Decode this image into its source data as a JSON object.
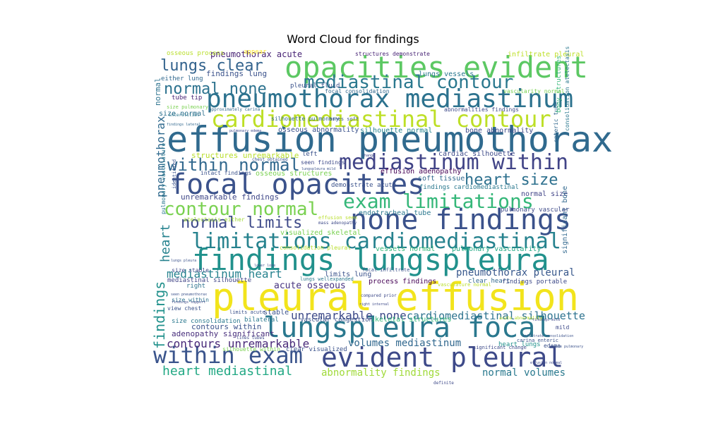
{
  "chart_data": {
    "type": "wordcloud",
    "title": "Word Cloud for findings",
    "words": [
      {
        "text": "pleural effusion",
        "weight": 1.0,
        "color": "#f2e41c"
      },
      {
        "text": "effusion pneumothorax",
        "weight": 0.95,
        "color": "#306a8e"
      },
      {
        "text": "opacities evident",
        "weight": 0.84,
        "color": "#5cc863"
      },
      {
        "text": "findings lungspleura",
        "weight": 0.84,
        "color": "#21918c"
      },
      {
        "text": "lungspleura focal",
        "weight": 0.8,
        "color": "#2a788e"
      },
      {
        "text": "none findings",
        "weight": 0.8,
        "color": "#3b528b"
      },
      {
        "text": "focal opacities",
        "weight": 0.8,
        "color": "#3b528b"
      },
      {
        "text": "evident pleural",
        "weight": 0.78,
        "color": "#3e4a89"
      },
      {
        "text": "pneumothorax mediastinum",
        "weight": 0.75,
        "color": "#2c728e"
      },
      {
        "text": "cardiomediastinal contour",
        "weight": 0.7,
        "color": "#bddf26"
      },
      {
        "text": "limitations cardiomediastinal",
        "weight": 0.68,
        "color": "#26828e"
      },
      {
        "text": "within exam",
        "weight": 0.68,
        "color": "#3a548c"
      },
      {
        "text": "mediastinum within",
        "weight": 0.64,
        "color": "#414487"
      },
      {
        "text": "exam limitations",
        "weight": 0.6,
        "color": "#35b779"
      },
      {
        "text": "contour normal",
        "weight": 0.56,
        "color": "#7ad151"
      },
      {
        "text": "mediastinal contour",
        "weight": 0.56,
        "color": "#2a788e"
      },
      {
        "text": "within normal",
        "weight": 0.5,
        "color": "#31688e"
      },
      {
        "text": "normal none",
        "weight": 0.48,
        "color": "#2c728e"
      },
      {
        "text": "lungs clear",
        "weight": 0.48,
        "color": "#33638d"
      },
      {
        "text": "normal limits",
        "weight": 0.48,
        "color": "#3e4a89"
      },
      {
        "text": "heart size",
        "weight": 0.48,
        "color": "#2d708e"
      },
      {
        "text": "heart mediastinal",
        "weight": 0.38,
        "color": "#22a884"
      },
      {
        "text": "contours unremarkable",
        "weight": 0.36,
        "color": "#482878"
      },
      {
        "text": "findings",
        "weight": 0.42,
        "color": "#21918c"
      },
      {
        "text": "pneumothorax",
        "weight": 0.34,
        "color": "#306a8e"
      },
      {
        "text": "heart",
        "weight": 0.36,
        "color": "#26828e"
      },
      {
        "text": "mediastinum heart",
        "weight": 0.34,
        "color": "#26828e"
      },
      {
        "text": "unremarkable none",
        "weight": 0.33,
        "color": "#3e4a89"
      },
      {
        "text": "cardiomediastinal silhouette",
        "weight": 0.32,
        "color": "#2c728e"
      },
      {
        "text": "pneumothorax pleural",
        "weight": 0.3,
        "color": "#38588c"
      },
      {
        "text": "abnormality findings",
        "weight": 0.27,
        "color": "#a0da39"
      },
      {
        "text": "normal volumes",
        "weight": 0.27,
        "color": "#29798e"
      },
      {
        "text": "volumes mediastinum",
        "weight": 0.27,
        "color": "#31688e"
      },
      {
        "text": "acute osseous",
        "weight": 0.24,
        "color": "#46327e"
      },
      {
        "text": "pneumothorax acute",
        "weight": 0.22,
        "color": "#482475"
      },
      {
        "text": "findings lung",
        "weight": 0.2,
        "color": "#3b528b"
      },
      {
        "text": "structures unremarkable",
        "weight": 0.2,
        "color": "#b8de29"
      },
      {
        "text": "unremarkable findings",
        "weight": 0.2,
        "color": "#3f4788"
      },
      {
        "text": "adenopathy significant",
        "weight": 0.2,
        "color": "#472d7b"
      },
      {
        "text": "contours within",
        "weight": 0.2,
        "color": "#3b528b"
      },
      {
        "text": "mediastinal silhouette",
        "weight": 0.12,
        "color": "#414487"
      },
      {
        "text": "visualized skeletal",
        "weight": 0.16,
        "color": "#7ad151"
      },
      {
        "text": "vessels normal",
        "weight": 0.16,
        "color": "#35b779"
      },
      {
        "text": "pulmonary vascularity",
        "weight": 0.16,
        "color": "#22a884"
      },
      {
        "text": "findings cardiomediastinal",
        "weight": 0.14,
        "color": "#2a788e"
      },
      {
        "text": "normal size",
        "weight": 0.15,
        "color": "#414487"
      },
      {
        "text": "soft tissue",
        "weight": 0.14,
        "color": "#31688e"
      },
      {
        "text": "effusion adenopathy",
        "weight": 0.14,
        "color": "#440154"
      },
      {
        "text": "cardiac silhouette",
        "weight": 0.14,
        "color": "#3e4a89"
      },
      {
        "text": "bone abnormality",
        "weight": 0.14,
        "color": "#3e4a89"
      },
      {
        "text": "osseous abnormality",
        "weight": 0.14,
        "color": "#3b528b"
      },
      {
        "text": "silhouette normal",
        "weight": 0.14,
        "color": "#26828e"
      },
      {
        "text": "endotracheal tube",
        "weight": 0.15,
        "color": "#2a788e"
      },
      {
        "text": "demonstrate acute",
        "weight": 0.12,
        "color": "#3b528b"
      },
      {
        "text": "lungs vessels",
        "weight": 0.15,
        "color": "#2a788e"
      },
      {
        "text": "infiltrate pleural",
        "weight": 0.15,
        "color": "#bddf26"
      },
      {
        "text": "osseous process",
        "weight": 0.14,
        "color": "#b8de29"
      },
      {
        "text": "pleural fluid",
        "weight": 0.14,
        "color": "#3b528b"
      },
      {
        "text": "focal consolidation",
        "weight": 0.12,
        "color": "#31688e"
      },
      {
        "text": "tube tip",
        "weight": 0.12,
        "color": "#482475"
      },
      {
        "text": "size normal",
        "weight": 0.13,
        "color": "#2d708e"
      },
      {
        "text": "normal",
        "weight": 0.2,
        "color": "#2c728e"
      },
      {
        "text": "right",
        "weight": 0.18,
        "color": "#2c728e"
      },
      {
        "text": "left",
        "weight": 0.12,
        "color": "#3b528b"
      },
      {
        "text": "appear",
        "weight": 0.12,
        "color": "#fde725"
      },
      {
        "text": "stable",
        "weight": 0.14,
        "color": "#3b528b"
      },
      {
        "text": "bilateral",
        "weight": 0.12,
        "color": "#2a788e"
      },
      {
        "text": "size within",
        "weight": 0.12,
        "color": "#2c728e"
      },
      {
        "text": "size consolidation",
        "weight": 0.12,
        "color": "#2a788e"
      },
      {
        "text": "view chest",
        "weight": 0.1,
        "color": "#3b528b"
      },
      {
        "text": "limits lung",
        "weight": 0.12,
        "color": "#3b528b"
      },
      {
        "text": "lungs wellexpanded",
        "weight": 0.1,
        "color": "#2a788e"
      },
      {
        "text": "process findings",
        "weight": 0.12,
        "color": "#440154"
      },
      {
        "text": "clear heart",
        "weight": 0.12,
        "color": "#31688e"
      },
      {
        "text": "findings portable",
        "weight": 0.12,
        "color": "#3e4a89"
      },
      {
        "text": "skeletal structures",
        "weight": 0.12,
        "color": "#35b779"
      },
      {
        "text": "vascular congestion",
        "weight": 0.11,
        "color": "#3b528b"
      },
      {
        "text": "clear visualized",
        "weight": 0.11,
        "color": "#3b528b"
      },
      {
        "text": "silhouette within",
        "weight": 0.1,
        "color": "#7ad151"
      },
      {
        "text": "heart lungs",
        "weight": 0.12,
        "color": "#21918c"
      },
      {
        "text": "significant bone",
        "weight": 0.15,
        "color": "#31688e"
      },
      {
        "text": "pulmonary vascular",
        "weight": 0.12,
        "color": "#3e4a89"
      },
      {
        "text": "intact findings",
        "weight": 0.1,
        "color": "#3b528b"
      },
      {
        "text": "osseous structures",
        "weight": 0.12,
        "color": "#7ad151"
      },
      {
        "text": "seen findings",
        "weight": 0.1,
        "color": "#3e4a89"
      },
      {
        "text": "either lung",
        "weight": 0.12,
        "color": "#31688e"
      },
      {
        "text": "structures demonstrate",
        "weight": 0.1,
        "color": "#482475"
      },
      {
        "text": "silhouette pulmonary",
        "weight": 0.1,
        "color": "#31688e"
      },
      {
        "text": "bones soft",
        "weight": 0.1,
        "color": "#3b528b"
      },
      {
        "text": "abnormalities findings",
        "weight": 0.1,
        "color": "#3e4a89"
      },
      {
        "text": "consolidation pleural",
        "weight": 0.11,
        "color": "#b8de29"
      },
      {
        "text": "atelectasis either",
        "weight": 0.1,
        "color": "#a0da39"
      },
      {
        "text": "limits acute",
        "weight": 0.1,
        "color": "#3b528b"
      },
      {
        "text": "mild",
        "weight": 0.1,
        "color": "#3e4a89"
      },
      {
        "text": "edema",
        "weight": 0.1,
        "color": "#3b528b"
      },
      {
        "text": "lines tubes",
        "weight": 0.08,
        "color": "#3e4a89"
      },
      {
        "text": "approximately carina",
        "weight": 0.08,
        "color": "#31688e"
      },
      {
        "text": "pulmonary vasculature",
        "weight": 0.09,
        "color": "#2a788e"
      },
      {
        "text": "enteric tube",
        "weight": 0.09,
        "color": "#31688e"
      },
      {
        "text": "vasculature normal",
        "weight": 0.09,
        "color": "#b8de29"
      },
      {
        "text": "compared prior",
        "weight": 0.08,
        "color": "#3e4a89"
      },
      {
        "text": "identified",
        "weight": 0.08,
        "color": "#3b528b"
      },
      {
        "text": "interstitial",
        "weight": 0.08,
        "color": "#2a788e"
      },
      {
        "text": "mass adenopathy",
        "weight": 0.07,
        "color": "#3e4a89"
      },
      {
        "text": "effusion seen",
        "weight": 0.08,
        "color": "#b8de29"
      },
      {
        "text": "consolidation atelectasis",
        "weight": 0.09,
        "color": "#2a788e"
      },
      {
        "text": "bony structures",
        "weight": 0.1,
        "color": "#35b779"
      },
      {
        "text": "vascularity normal",
        "weight": 0.09,
        "color": "#7ad151"
      },
      {
        "text": "definite",
        "weight": 0.07,
        "color": "#3e4a89"
      },
      {
        "text": "significant change",
        "weight": 0.08,
        "color": "#3e4a89"
      },
      {
        "text": "acute pulmonary",
        "weight": 0.07,
        "color": "#3b528b"
      },
      {
        "text": "size stable",
        "weight": 0.1,
        "color": "#3e4a89"
      },
      {
        "text": "lower lobe",
        "weight": 0.07,
        "color": "#3b528b"
      },
      {
        "text": "lungs pleura",
        "weight": 0.07,
        "color": "#3b528b"
      },
      {
        "text": "findings support",
        "weight": 0.07,
        "color": "#3e4a89"
      },
      {
        "text": "seen pneumothorax",
        "weight": 0.07,
        "color": "#3b528b"
      },
      {
        "text": "right internal",
        "weight": 0.07,
        "color": "#3e4a89"
      },
      {
        "text": "infiltrate consolidation",
        "weight": 0.07,
        "color": "#3b528b"
      },
      {
        "text": "findings mild",
        "weight": 0.07,
        "color": "#3e4a89"
      },
      {
        "text": "acute abnormality",
        "weight": 0.07,
        "color": "#b8de29"
      },
      {
        "text": "carina enteric",
        "weight": 0.08,
        "color": "#3b528b"
      },
      {
        "text": "effusion normal",
        "weight": 0.07,
        "color": "#3e4a89"
      },
      {
        "text": "chest obtained",
        "weight": 0.07,
        "color": "#3b528b"
      },
      {
        "text": "lungspleura mild",
        "weight": 0.07,
        "color": "#3b528b"
      },
      {
        "text": "change",
        "weight": 0.07,
        "color": "#3e4a89"
      },
      {
        "text": "focal infiltrate",
        "weight": 0.08,
        "color": "#3b528b"
      },
      {
        "text": "findings lateral",
        "weight": 0.07,
        "color": "#31688e"
      },
      {
        "text": "size pulmonary",
        "weight": 0.08,
        "color": "#7ad151"
      },
      {
        "text": "pulmonary edema",
        "weight": 0.07,
        "color": "#3e4a89"
      }
    ]
  }
}
